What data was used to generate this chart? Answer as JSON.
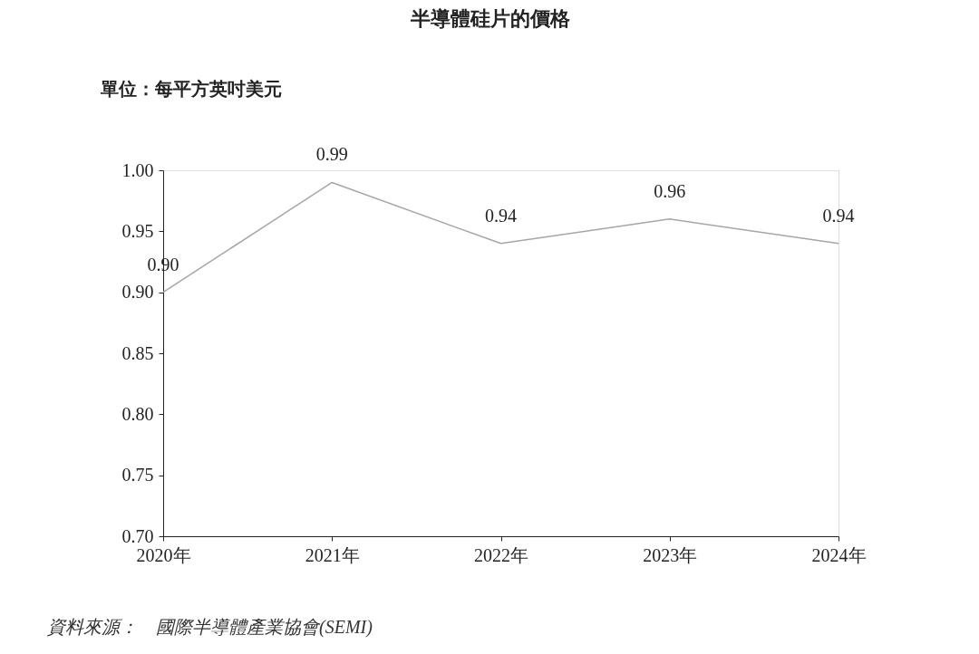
{
  "chart_data": {
    "type": "line",
    "title": "半導體硅片的價格",
    "ylabel": "單位：每平方英吋美元",
    "categories": [
      "2020年",
      "2021年",
      "2022年",
      "2023年",
      "2024年"
    ],
    "series": [
      {
        "color": "#a6a6a6",
        "values": [
          0.9,
          0.99,
          0.94,
          0.96,
          0.94
        ],
        "value_labels": [
          "0.90",
          "0.99",
          "0.94",
          "0.96",
          "0.94"
        ]
      }
    ],
    "ylim": [
      0.7,
      1.0
    ],
    "yticks": [
      {
        "value": 0.7,
        "label": "0.70"
      },
      {
        "value": 0.75,
        "label": "0.75"
      },
      {
        "value": 0.8,
        "label": "0.80"
      },
      {
        "value": 0.85,
        "label": "0.85"
      },
      {
        "value": 0.9,
        "label": "0.90"
      },
      {
        "value": 0.95,
        "label": "0.95"
      },
      {
        "value": 1.0,
        "label": "1.00"
      }
    ],
    "grid": false,
    "marker": "none",
    "line_style": "solid",
    "annotations": [
      "資料來源：　國際半導體產業協會(SEMI)"
    ]
  }
}
